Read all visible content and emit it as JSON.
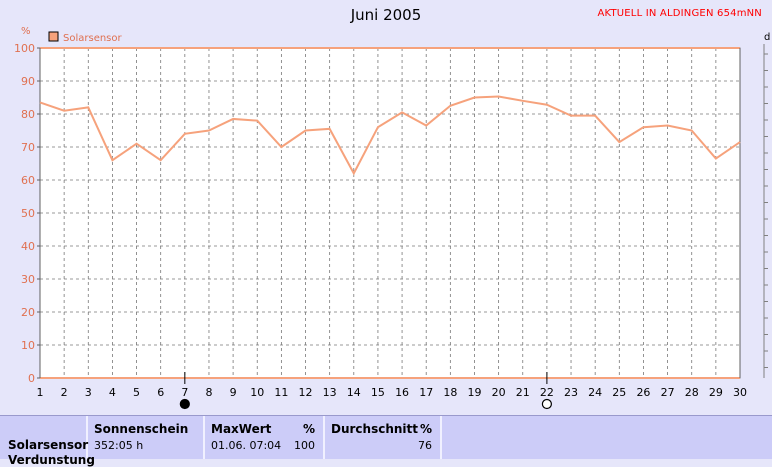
{
  "header": {
    "title": "Juni 2005",
    "location": "AKTUELL IN ALDINGEN 654mNN",
    "unit_left": "%",
    "unit_right": "d"
  },
  "chart_data": {
    "type": "line",
    "title": "Juni 2005",
    "ylabel": "%",
    "ylim": [
      0,
      100
    ],
    "yticks": [
      0,
      10,
      20,
      30,
      40,
      50,
      60,
      70,
      80,
      90,
      100
    ],
    "x": [
      1,
      2,
      3,
      4,
      5,
      6,
      7,
      8,
      9,
      10,
      11,
      12,
      13,
      14,
      15,
      16,
      17,
      18,
      19,
      20,
      21,
      22,
      23,
      24,
      25,
      26,
      27,
      28,
      29,
      30
    ],
    "grid": true,
    "legend_placement": "top-left",
    "series": [
      {
        "name": "Solarsensor",
        "color": "#f6a27c",
        "values": [
          83.5,
          81,
          82,
          66,
          71,
          66,
          74,
          75,
          78.5,
          78,
          70,
          75,
          75.5,
          62,
          76,
          80.5,
          76.5,
          82.5,
          85,
          85.3,
          84,
          82.8,
          79.5,
          79.5,
          71.5,
          76,
          76.5,
          75,
          66.5,
          71.5
        ]
      }
    ],
    "moon_markers": [
      {
        "day": 7,
        "phase": "new-moon-icon"
      },
      {
        "day": 22,
        "phase": "full-moon-icon"
      }
    ]
  },
  "footer": {
    "row_label": "Solarsensor",
    "row_label2": "Verdunstung",
    "sunshine": {
      "header": "Sonnenschein",
      "value": "352:05 h"
    },
    "max": {
      "header": "MaxWert",
      "unit": "%",
      "date": "01.06.  07:04",
      "value": "100"
    },
    "avg": {
      "header": "Durchschnitt",
      "unit": "%",
      "value": "76"
    }
  }
}
